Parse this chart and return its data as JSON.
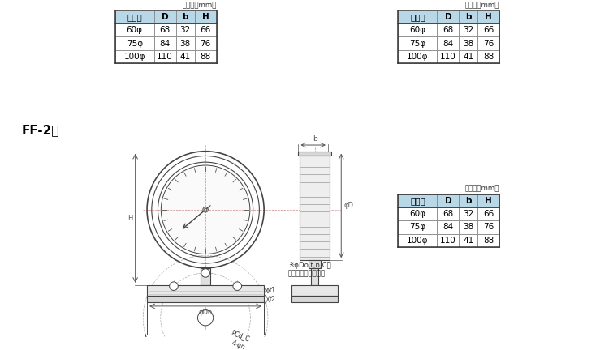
{
  "title_label": "FF-2型",
  "unit_label": "（単位：mm）",
  "table_header": [
    "大きさ",
    "D",
    "b",
    "H"
  ],
  "table_rows": [
    [
      "60φ",
      "68",
      "32",
      "66"
    ],
    [
      "75φ",
      "84",
      "38",
      "76"
    ],
    [
      "100φ",
      "110",
      "41",
      "88"
    ]
  ],
  "header_bg": "#b8d8e8",
  "bg_color": "#ffffff",
  "lc": "#444444",
  "dc": "#555555",
  "note_text": "※φDo,t,n,Cは\n下記フランジ表参照",
  "label_PCd": "PCd_C",
  "label_4n": "4-φn",
  "label_b": "b",
  "label_H": "H",
  "label_phiD": "φD",
  "label_t2": "t2",
  "label_t1": "t1",
  "label_phiDo": "φDo"
}
